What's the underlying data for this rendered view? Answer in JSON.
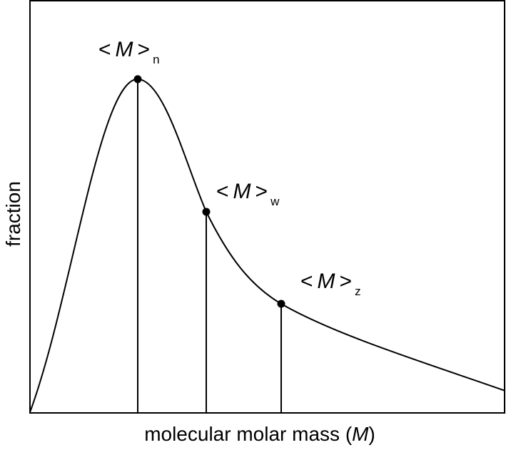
{
  "x_label": {
    "before": "molecular molar mass (",
    "symbol": "M",
    "after": ")"
  },
  "y_label": "fraction",
  "annotations": [
    {
      "open": "<",
      "symbol": "M",
      "close": ">",
      "subscript": "n"
    },
    {
      "open": "<",
      "symbol": "M",
      "close": ">",
      "subscript": "w"
    },
    {
      "open": "<",
      "symbol": "M",
      "close": ">",
      "subscript": "z"
    }
  ]
}
